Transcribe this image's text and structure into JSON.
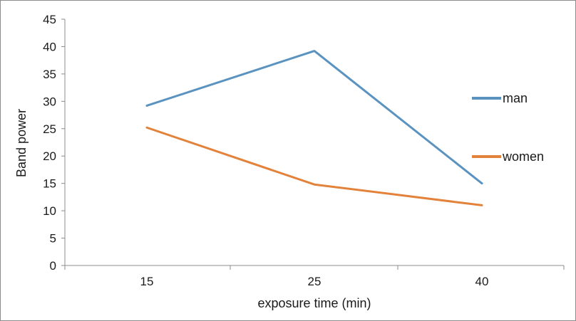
{
  "chart_data": {
    "type": "line",
    "title": "",
    "xlabel": "exposure time (min)",
    "ylabel": "Band power",
    "categories": [
      "15",
      "25",
      "40"
    ],
    "ylim": [
      0,
      45
    ],
    "yticks": [
      0,
      5,
      10,
      15,
      20,
      25,
      30,
      35,
      40,
      45
    ],
    "grid": false,
    "legend": "right",
    "series": [
      {
        "name": "man",
        "values": [
          29.2,
          39.2,
          15
        ],
        "color": "#5b93c0"
      },
      {
        "name": "women",
        "values": [
          25.2,
          14.8,
          11
        ],
        "color": "#e2823b"
      }
    ]
  }
}
